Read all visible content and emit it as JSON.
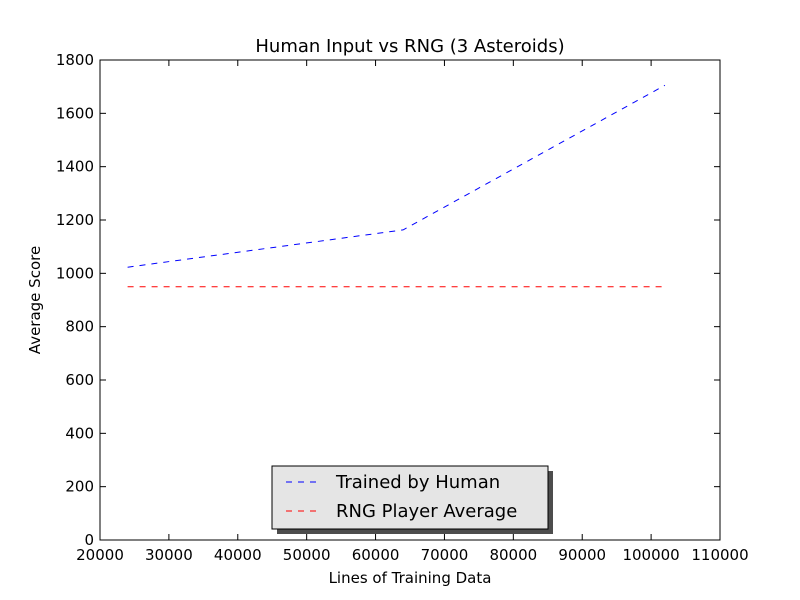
{
  "chart_data": {
    "type": "line",
    "title": "Human Input vs RNG (3 Asteroids)",
    "xlabel": "Lines of Training Data",
    "ylabel": "Average Score",
    "xlim": [
      20000,
      110000
    ],
    "ylim": [
      0,
      1800
    ],
    "xticks": [
      20000,
      30000,
      40000,
      50000,
      60000,
      70000,
      80000,
      90000,
      100000,
      110000
    ],
    "yticks": [
      0,
      200,
      400,
      600,
      800,
      1000,
      1200,
      1400,
      1600,
      1800
    ],
    "grid": false,
    "legend": {
      "placement": "lower-center",
      "shadow": true
    },
    "series": [
      {
        "name": "Trained by Human",
        "color": "#0000ff",
        "linestyle": "dashed",
        "x": [
          24000,
          64000,
          102000
        ],
        "y": [
          1023,
          1163,
          1705
        ]
      },
      {
        "name": "RNG Player Average",
        "color": "#ff0000",
        "linestyle": "dashed",
        "x": [
          24000,
          102000
        ],
        "y": [
          950,
          950
        ]
      }
    ]
  }
}
